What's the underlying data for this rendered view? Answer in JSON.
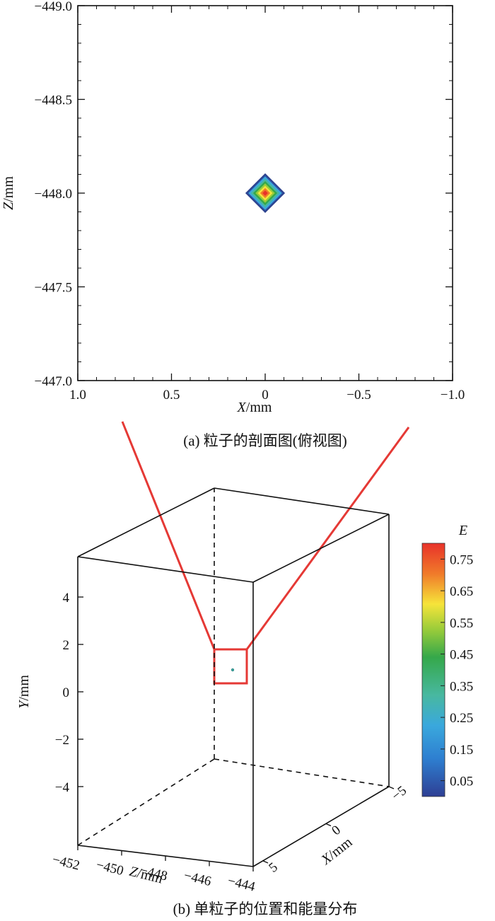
{
  "figure": {
    "caption_a": "(a) 粒子的剖面图(俯视图)",
    "caption_b": "(b) 单粒子的位置和能量分布"
  },
  "chart_data": [
    {
      "type": "heatmap",
      "panel": "a",
      "xlabel_var": "X",
      "xlabel_unit": "/mm",
      "ylabel_var": "Z",
      "ylabel_unit": "/mm",
      "xlim": [
        1.0,
        -1.0
      ],
      "ylim": [
        -447.0,
        -449.0
      ],
      "x_ticks": [
        "1.0",
        "0.5",
        "0",
        "−0.5",
        "−1.0"
      ],
      "x_tick_values": [
        1.0,
        0.5,
        0,
        -0.5,
        -1.0
      ],
      "y_ticks": [
        "−449.0",
        "−448.5",
        "−448.0",
        "−447.5",
        "−447.0"
      ],
      "y_tick_values": [
        -449.0,
        -448.5,
        -448.0,
        -447.5,
        -447.0
      ],
      "particle": {
        "x": 0,
        "z": -448.0,
        "half_width": 0.1,
        "peak_E": 0.75,
        "edge_E": 0.05
      }
    },
    {
      "type": "scatter",
      "panel": "b",
      "projection": "3d",
      "xlabel_var": "X",
      "xlabel_unit": "/mm",
      "ylabel_var": "Y",
      "ylabel_unit": "/mm",
      "zlabel_var": "Z",
      "zlabel_unit": "/mm",
      "z_ticks": [
        "−452",
        "−450",
        "−448",
        "−446",
        "−444"
      ],
      "z_tick_values": [
        -452,
        -450,
        -448,
        -446,
        -444
      ],
      "y_ticks": [
        "4",
        "2",
        "0",
        "−2",
        "−4"
      ],
      "y_tick_values": [
        4,
        2,
        0,
        -2,
        -4
      ],
      "x_ticks": [
        "5",
        "0",
        "−5"
      ],
      "x_tick_values": [
        5,
        0,
        -5
      ],
      "points": [
        {
          "x": 0,
          "y": 1,
          "z": -448,
          "E": 0.2
        }
      ],
      "colorbar": {
        "label": "E",
        "ticks": [
          "0.75",
          "0.65",
          "0.55",
          "0.45",
          "0.35",
          "0.25",
          "0.15",
          "0.05"
        ],
        "tick_values": [
          0.75,
          0.65,
          0.55,
          0.45,
          0.35,
          0.25,
          0.15,
          0.05
        ],
        "colors": [
          "#e8322a",
          "#f07a2a",
          "#f6e43a",
          "#9acc3a",
          "#35a84a",
          "#48b8a0",
          "#3aa8dd",
          "#2e4fa0"
        ]
      },
      "zoom_indicator_color": "#e53935"
    }
  ]
}
